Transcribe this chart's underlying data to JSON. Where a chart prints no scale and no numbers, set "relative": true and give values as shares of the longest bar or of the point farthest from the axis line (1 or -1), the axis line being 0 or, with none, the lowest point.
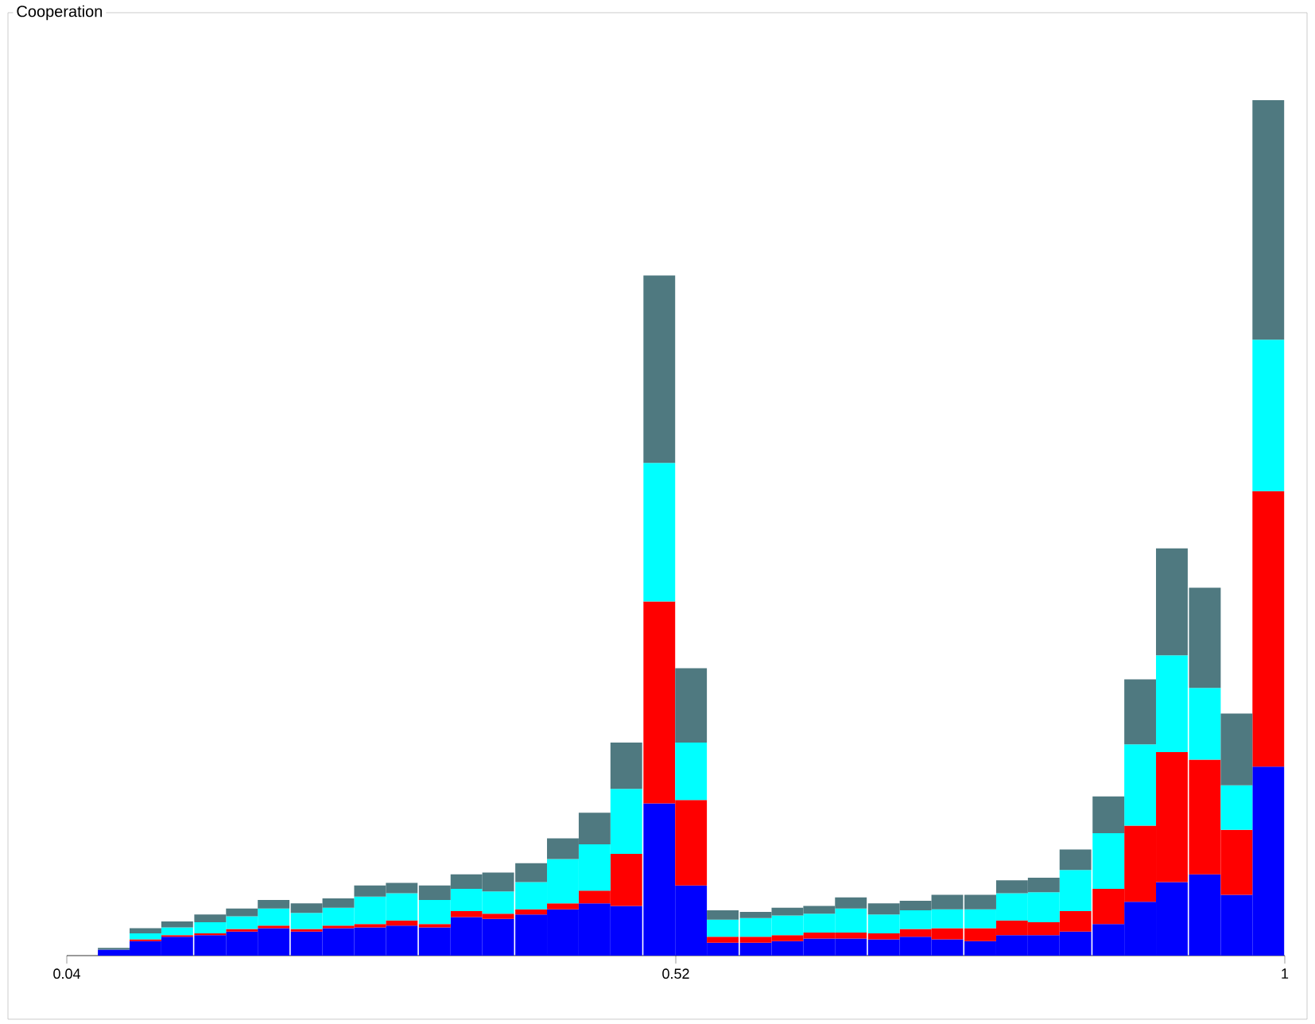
{
  "chart_data": {
    "type": "bar",
    "title": "Cooperation",
    "relative": true,
    "stacked": true,
    "xlim": [
      0.04,
      1
    ],
    "xticks": [
      {
        "value": 0.04,
        "label": "0.04"
      },
      {
        "value": 0.52,
        "label": "0.52"
      },
      {
        "value": 1,
        "label": "1"
      }
    ],
    "x": [
      0.077,
      0.102,
      0.127,
      0.153,
      0.178,
      0.203,
      0.229,
      0.254,
      0.279,
      0.304,
      0.33,
      0.355,
      0.38,
      0.406,
      0.431,
      0.456,
      0.481,
      0.507,
      0.532,
      0.557,
      0.583,
      0.608,
      0.633,
      0.658,
      0.684,
      0.709,
      0.734,
      0.76,
      0.785,
      0.81,
      0.835,
      0.861,
      0.886,
      0.911,
      0.937,
      0.962,
      0.987
    ],
    "series": [
      {
        "color": "#0000ff",
        "values": [
          0.007,
          0.017,
          0.022,
          0.024,
          0.028,
          0.032,
          0.028,
          0.032,
          0.033,
          0.035,
          0.033,
          0.045,
          0.043,
          0.048,
          0.054,
          0.061,
          0.058,
          0.178,
          0.082,
          0.015,
          0.015,
          0.017,
          0.02,
          0.02,
          0.019,
          0.022,
          0.019,
          0.017,
          0.024,
          0.024,
          0.028,
          0.037,
          0.063,
          0.086,
          0.095,
          0.071,
          0.221
        ]
      },
      {
        "color": "#ff0000",
        "values": [
          0,
          0.002,
          0.002,
          0.002,
          0.003,
          0.003,
          0.003,
          0.003,
          0.004,
          0.006,
          0.004,
          0.007,
          0.006,
          0.006,
          0.007,
          0.015,
          0.061,
          0.236,
          0.1,
          0.007,
          0.007,
          0.007,
          0.007,
          0.007,
          0.007,
          0.009,
          0.013,
          0.015,
          0.017,
          0.015,
          0.024,
          0.041,
          0.089,
          0.152,
          0.134,
          0.076,
          0.322
        ]
      },
      {
        "color": "#00ffff",
        "values": [
          0,
          0.007,
          0.009,
          0.013,
          0.015,
          0.02,
          0.019,
          0.021,
          0.032,
          0.032,
          0.028,
          0.026,
          0.026,
          0.032,
          0.052,
          0.054,
          0.076,
          0.162,
          0.067,
          0.02,
          0.022,
          0.023,
          0.022,
          0.028,
          0.022,
          0.022,
          0.022,
          0.022,
          0.032,
          0.035,
          0.048,
          0.065,
          0.095,
          0.113,
          0.084,
          0.052,
          0.177
        ]
      },
      {
        "color": "#4f7980",
        "values": [
          0.002,
          0.006,
          0.007,
          0.009,
          0.009,
          0.01,
          0.011,
          0.011,
          0.013,
          0.012,
          0.017,
          0.017,
          0.022,
          0.022,
          0.024,
          0.037,
          0.054,
          0.219,
          0.087,
          0.011,
          0.007,
          0.009,
          0.009,
          0.013,
          0.013,
          0.011,
          0.017,
          0.017,
          0.015,
          0.017,
          0.024,
          0.043,
          0.076,
          0.125,
          0.117,
          0.084,
          0.28
        ]
      }
    ]
  }
}
